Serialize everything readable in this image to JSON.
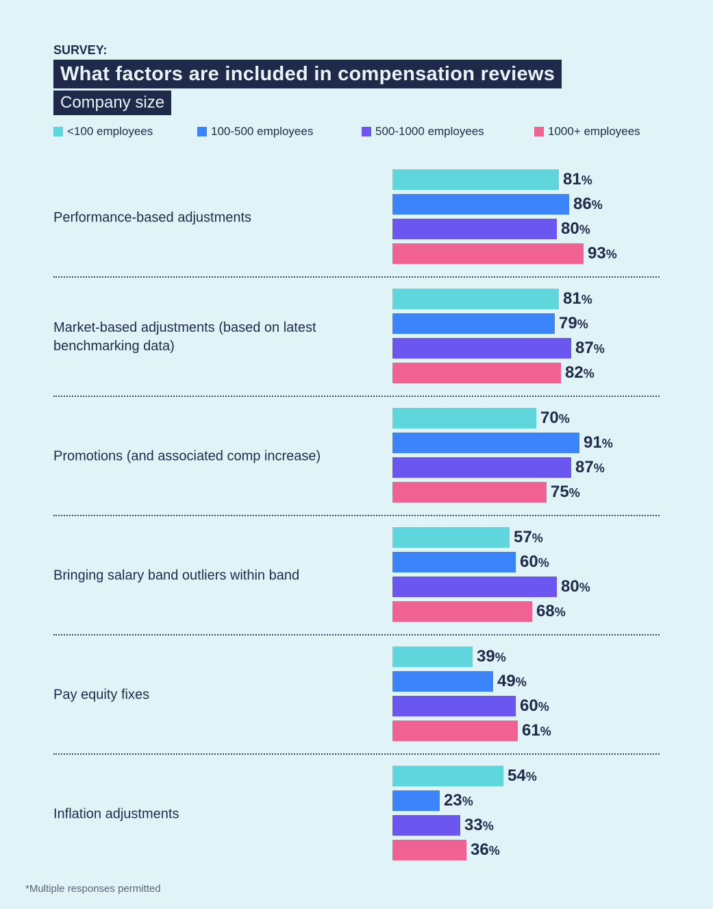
{
  "header": {
    "kicker": "SURVEY:",
    "title": "What factors are included in compensation reviews",
    "subtitle": "Company size"
  },
  "chart_data": {
    "type": "bar",
    "orientation": "horizontal",
    "title": "What factors are included in compensation reviews",
    "subtitle": "Company size",
    "unit": "%",
    "xlim": [
      0,
      100
    ],
    "grid": false,
    "legend_position": "top",
    "categories": [
      "Performance-based adjustments",
      "Market-based adjustments (based on latest benchmarking data)",
      "Promotions (and associated comp increase)",
      "Bringing salary band outliers within band",
      "Pay equity fixes",
      "Inflation adjustments"
    ],
    "series": [
      {
        "name": "<100 employees",
        "color": "#5fd5dc",
        "values": [
          81,
          81,
          70,
          57,
          39,
          54
        ]
      },
      {
        "name": "100-500 employees",
        "color": "#3b84fa",
        "values": [
          86,
          79,
          91,
          60,
          49,
          23
        ]
      },
      {
        "name": "500-1000 employees",
        "color": "#6b57ef",
        "values": [
          80,
          87,
          87,
          80,
          60,
          33
        ]
      },
      {
        "name": "1000+ employees",
        "color": "#f06292",
        "values": [
          93,
          82,
          75,
          68,
          61,
          36
        ]
      }
    ]
  },
  "footnote": "*Multiple responses permitted"
}
